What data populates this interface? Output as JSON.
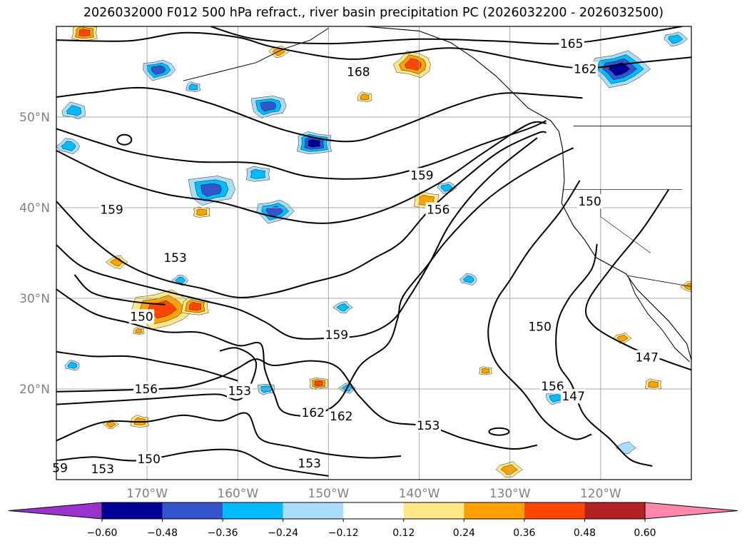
{
  "title": "2026032000 F012 500 hPa refract., river basin precipitation PC (2026032200 - 2026032500)",
  "map": {
    "lon_range": [
      -180,
      -110
    ],
    "lat_range": [
      10,
      60
    ],
    "lon_labels": [
      "170°W",
      "160°W",
      "150°W",
      "140°W",
      "130°W",
      "120°W"
    ],
    "lat_labels": [
      "20°N",
      "30°N",
      "40°N",
      "50°N"
    ],
    "grid": true,
    "contour_color": "#000000"
  },
  "contour_labels": [
    {
      "text": "165",
      "lon": -123.2,
      "lat": 58.1
    },
    {
      "text": "162",
      "lon": -121.7,
      "lat": 55.3
    },
    {
      "text": "168",
      "lon": -146.7,
      "lat": 55.0
    },
    {
      "text": "159",
      "lon": -139.7,
      "lat": 43.6
    },
    {
      "text": "156",
      "lon": -137.9,
      "lat": 39.8
    },
    {
      "text": "150",
      "lon": -121.2,
      "lat": 40.7
    },
    {
      "text": "159",
      "lon": -173.9,
      "lat": 39.8
    },
    {
      "text": "153",
      "lon": -166.9,
      "lat": 34.5
    },
    {
      "text": "150",
      "lon": -170.6,
      "lat": 28.0
    },
    {
      "text": "159",
      "lon": -149.1,
      "lat": 26.0
    },
    {
      "text": "150",
      "lon": -126.7,
      "lat": 26.9
    },
    {
      "text": "147",
      "lon": -114.9,
      "lat": 23.5
    },
    {
      "text": "153",
      "lon": -159.8,
      "lat": 19.8
    },
    {
      "text": "156",
      "lon": -170.1,
      "lat": 20.0
    },
    {
      "text": "156",
      "lon": -125.3,
      "lat": 20.3
    },
    {
      "text": "147",
      "lon": -123.0,
      "lat": 19.2
    },
    {
      "text": "162",
      "lon": -151.7,
      "lat": 17.4
    },
    {
      "text": "162",
      "lon": -148.6,
      "lat": 17.0
    },
    {
      "text": "153",
      "lon": -139.0,
      "lat": 16.0
    },
    {
      "text": "150",
      "lon": -169.8,
      "lat": 12.3
    },
    {
      "text": "153",
      "lon": -174.9,
      "lat": 11.2
    },
    {
      "text": "153",
      "lon": -152.1,
      "lat": 11.8
    },
    {
      "text": "59",
      "lon": -179.6,
      "lat": 11.3
    }
  ],
  "colorbar": {
    "colors": [
      "#9933cc",
      "#000099",
      "#3355cc",
      "#00bbff",
      "#aaddf7",
      "#ffffff",
      "#ffe88a",
      "#ffa200",
      "#ff4500",
      "#b22222",
      "#ff88aa"
    ],
    "tick_labels": [
      "−0.60",
      "−0.48",
      "−0.36",
      "−0.24",
      "−0.12",
      "0.12",
      "0.24",
      "0.36",
      "0.48",
      "0.60"
    ],
    "extend": "both"
  },
  "blobs": [
    {
      "lon": -176.9,
      "lat": 59.3,
      "r": 14,
      "v": 0.45
    },
    {
      "lon": -168.8,
      "lat": 55.2,
      "r": 16,
      "v": -0.4
    },
    {
      "lon": -164.9,
      "lat": 53.3,
      "r": 8,
      "v": -0.3
    },
    {
      "lon": -156.7,
      "lat": 51.2,
      "r": 18,
      "v": -0.45
    },
    {
      "lon": -178.0,
      "lat": 50.7,
      "r": 13,
      "v": -0.28
    },
    {
      "lon": -151.6,
      "lat": 47.1,
      "r": 19,
      "v": -0.55
    },
    {
      "lon": -157.8,
      "lat": 43.7,
      "r": 13,
      "v": -0.3
    },
    {
      "lon": -163.0,
      "lat": 42.0,
      "r": 24,
      "v": -0.4
    },
    {
      "lon": -156.0,
      "lat": 39.6,
      "r": 18,
      "v": -0.45
    },
    {
      "lon": -140.6,
      "lat": 55.8,
      "r": 20,
      "v": 0.45
    },
    {
      "lon": -146.0,
      "lat": 52.2,
      "r": 8,
      "v": 0.3
    },
    {
      "lon": -155.5,
      "lat": 57.2,
      "r": 9,
      "v": 0.3
    },
    {
      "lon": -118.0,
      "lat": 55.3,
      "r": 28,
      "v": -0.5
    },
    {
      "lon": -111.8,
      "lat": 58.6,
      "r": 11,
      "v": -0.3
    },
    {
      "lon": -164.0,
      "lat": 39.5,
      "r": 9,
      "v": 0.25
    },
    {
      "lon": -168.4,
      "lat": 28.8,
      "r": 30,
      "v": 0.42
    },
    {
      "lon": -164.7,
      "lat": 29.1,
      "r": 15,
      "v": 0.4
    },
    {
      "lon": -166.3,
      "lat": 32.0,
      "r": 8,
      "v": -0.3
    },
    {
      "lon": -173.3,
      "lat": 34.0,
      "r": 10,
      "v": 0.3
    },
    {
      "lon": -148.4,
      "lat": 29.0,
      "r": 9,
      "v": -0.3
    },
    {
      "lon": -151.1,
      "lat": 20.6,
      "r": 10,
      "v": 0.45
    },
    {
      "lon": -156.9,
      "lat": 20.0,
      "r": 9,
      "v": -0.3
    },
    {
      "lon": -147.9,
      "lat": 20.1,
      "r": 8,
      "v": -0.28
    },
    {
      "lon": -178.2,
      "lat": 22.6,
      "r": 8,
      "v": -0.3
    },
    {
      "lon": -139.2,
      "lat": 40.8,
      "r": 14,
      "v": 0.3
    },
    {
      "lon": -137.0,
      "lat": 42.2,
      "r": 9,
      "v": -0.3
    },
    {
      "lon": -134.5,
      "lat": 32.1,
      "r": 9,
      "v": -0.3
    },
    {
      "lon": -132.7,
      "lat": 22.0,
      "r": 7,
      "v": 0.35
    },
    {
      "lon": -125.0,
      "lat": 19.0,
      "r": 10,
      "v": -0.3
    },
    {
      "lon": -114.2,
      "lat": 20.5,
      "r": 9,
      "v": 0.35
    },
    {
      "lon": -110.2,
      "lat": 31.3,
      "r": 8,
      "v": 0.25
    },
    {
      "lon": -117.2,
      "lat": 13.5,
      "r": 9,
      "v": -0.2
    },
    {
      "lon": -130.1,
      "lat": 11.1,
      "r": 12,
      "v": 0.3
    },
    {
      "lon": -170.8,
      "lat": 16.4,
      "r": 10,
      "v": 0.3
    },
    {
      "lon": -174.0,
      "lat": 16.1,
      "r": 7,
      "v": 0.25
    },
    {
      "lon": -178.6,
      "lat": 46.8,
      "r": 12,
      "v": -0.25
    },
    {
      "lon": -170.9,
      "lat": 26.4,
      "r": 6,
      "v": 0.25
    },
    {
      "lon": -117.6,
      "lat": 25.6,
      "r": 8,
      "v": 0.3
    }
  ]
}
